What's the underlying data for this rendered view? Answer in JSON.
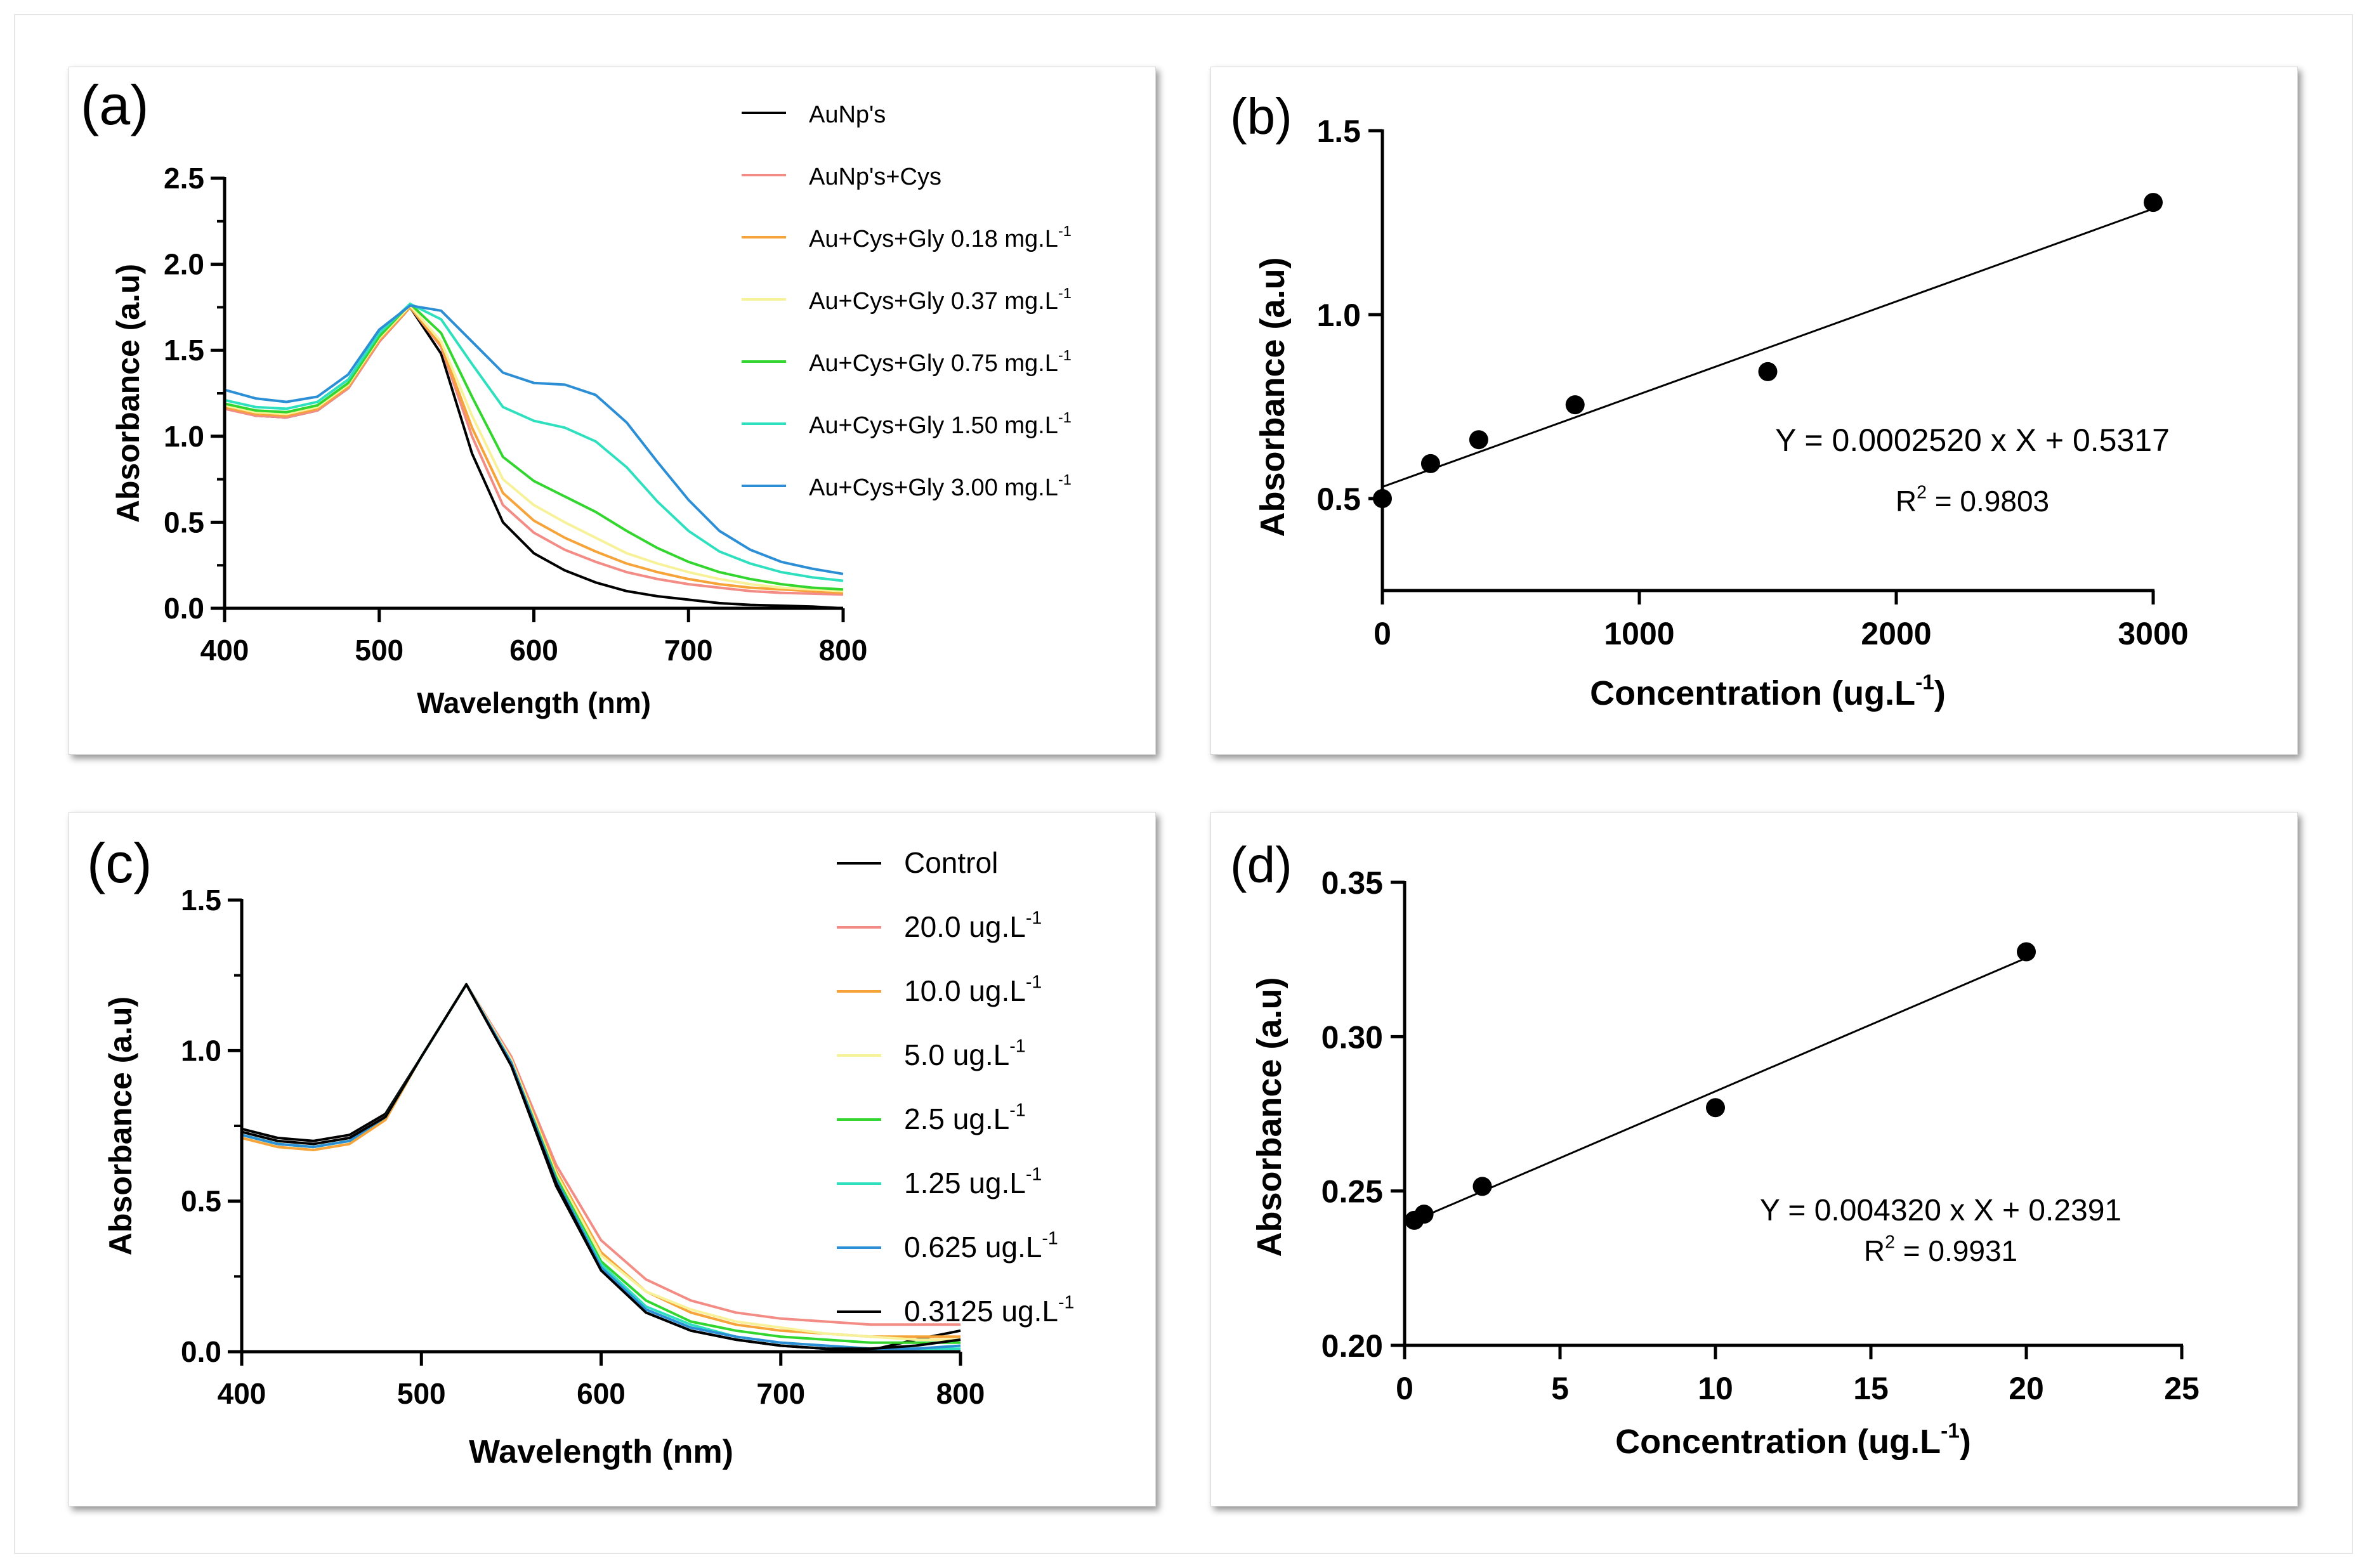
{
  "chart_data": [
    {
      "panel": "(a)",
      "type": "line",
      "xlabel": "Wavelength (nm)",
      "ylabel": "Absorbance (a.u)",
      "xlim": [
        400,
        800
      ],
      "ylim": [
        0,
        2.5
      ],
      "xticks": [
        "400",
        "500",
        "600",
        "700",
        "800"
      ],
      "yticks": [
        "0.0",
        "0.5",
        "1.0",
        "1.5",
        "2.0",
        "2.5"
      ],
      "legend": [
        {
          "base": "AuNp's",
          "sup": ""
        },
        {
          "base": "AuNp's+Cys",
          "sup": ""
        },
        {
          "base": "Au+Cys+Gly 0.18 mg.L",
          "sup": "-1"
        },
        {
          "base": "Au+Cys+Gly 0.37 mg.L",
          "sup": "-1"
        },
        {
          "base": "Au+Cys+Gly 0.75 mg.L",
          "sup": "-1"
        },
        {
          "base": "Au+Cys+Gly 1.50 mg.L",
          "sup": "-1"
        },
        {
          "base": "Au+Cys+Gly 3.00 mg.L",
          "sup": "-1"
        }
      ],
      "x": [
        400,
        420,
        440,
        460,
        480,
        500,
        520,
        540,
        560,
        580,
        600,
        620,
        640,
        660,
        680,
        700,
        720,
        740,
        760,
        780,
        800
      ],
      "series": [
        {
          "name": "AuNp's",
          "color": "#000000",
          "values": [
            1.17,
            1.12,
            1.11,
            1.15,
            1.28,
            1.55,
            1.75,
            1.48,
            0.9,
            0.5,
            0.32,
            0.22,
            0.15,
            0.1,
            0.07,
            0.05,
            0.03,
            0.02,
            0.015,
            0.01,
            0.0
          ]
        },
        {
          "name": "AuNp's+Cys",
          "color": "#f28c84",
          "values": [
            1.16,
            1.12,
            1.11,
            1.15,
            1.28,
            1.55,
            1.75,
            1.52,
            1.0,
            0.6,
            0.44,
            0.34,
            0.27,
            0.21,
            0.17,
            0.14,
            0.12,
            0.1,
            0.09,
            0.085,
            0.08
          ]
        },
        {
          "name": "Au+Cys+Gly 0.18 mg.L-1",
          "color": "#f6a33a",
          "values": [
            1.17,
            1.13,
            1.12,
            1.16,
            1.29,
            1.56,
            1.75,
            1.53,
            1.05,
            0.67,
            0.51,
            0.41,
            0.33,
            0.26,
            0.21,
            0.17,
            0.14,
            0.12,
            0.11,
            0.1,
            0.09
          ]
        },
        {
          "name": "Au+Cys+Gly 0.37 mg.L-1",
          "color": "#f7f29a",
          "values": [
            1.18,
            1.14,
            1.13,
            1.17,
            1.3,
            1.57,
            1.76,
            1.55,
            1.12,
            0.75,
            0.6,
            0.5,
            0.41,
            0.32,
            0.26,
            0.21,
            0.17,
            0.14,
            0.12,
            0.11,
            0.1
          ]
        },
        {
          "name": "Au+Cys+Gly 0.75 mg.L-1",
          "color": "#33d62e",
          "values": [
            1.19,
            1.15,
            1.14,
            1.18,
            1.31,
            1.58,
            1.77,
            1.6,
            1.23,
            0.88,
            0.74,
            0.65,
            0.56,
            0.45,
            0.35,
            0.27,
            0.21,
            0.17,
            0.14,
            0.12,
            0.11
          ]
        },
        {
          "name": "Au+Cys+Gly 1.50 mg.L-1",
          "color": "#2fe0bf",
          "values": [
            1.21,
            1.17,
            1.16,
            1.2,
            1.33,
            1.6,
            1.77,
            1.68,
            1.42,
            1.17,
            1.09,
            1.05,
            0.97,
            0.82,
            0.62,
            0.45,
            0.33,
            0.26,
            0.21,
            0.18,
            0.16
          ]
        },
        {
          "name": "Au+Cys+Gly 3.00 mg.L-1",
          "color": "#2c8fd6",
          "values": [
            1.27,
            1.22,
            1.2,
            1.23,
            1.36,
            1.62,
            1.76,
            1.73,
            1.55,
            1.37,
            1.31,
            1.3,
            1.24,
            1.08,
            0.85,
            0.63,
            0.45,
            0.34,
            0.27,
            0.23,
            0.2
          ]
        }
      ]
    },
    {
      "panel": "(b)",
      "type": "scatter",
      "xlabel_base": "Concentration (ug.L",
      "xlabel_sup": "-1",
      "xlabel_end": ")",
      "ylabel": "Absorbance (a.u)",
      "xlim": [
        0,
        3000
      ],
      "ylim": [
        0.25,
        1.5
      ],
      "xticks": [
        "0",
        "1000",
        "2000",
        "3000"
      ],
      "yticks": [
        "0.5",
        "1.0",
        "1.5"
      ],
      "points": [
        [
          0,
          0.5
        ],
        [
          187.5,
          0.595
        ],
        [
          375,
          0.66
        ],
        [
          750,
          0.755
        ],
        [
          1500,
          0.845
        ],
        [
          3000,
          1.305
        ]
      ],
      "fit": {
        "slope": 0.000252,
        "intercept": 0.5317
      },
      "equation": "Y = 0.0002520 x X + 0.5317",
      "r2_label": "R",
      "r2_sup": "2",
      "r2_value": " = 0.9803"
    },
    {
      "panel": "(c)",
      "type": "line",
      "xlabel": "Wavelength (nm)",
      "ylabel": "Absorbance (a.u)",
      "xlim": [
        400,
        800
      ],
      "ylim": [
        0,
        1.5
      ],
      "xticks": [
        "400",
        "500",
        "600",
        "700",
        "800"
      ],
      "yticks": [
        "0.0",
        "0.5",
        "1.0",
        "1.5"
      ],
      "legend": [
        {
          "base": "Control",
          "sup": ""
        },
        {
          "base": "20.0 ug.L",
          "sup": "-1"
        },
        {
          "base": "10.0 ug.L",
          "sup": "-1"
        },
        {
          "base": "5.0 ug.L",
          "sup": "-1"
        },
        {
          "base": "2.5 ug.L",
          "sup": "-1"
        },
        {
          "base": "1.25 ug.L",
          "sup": "-1"
        },
        {
          "base": "0.625 ug.L",
          "sup": "-1"
        },
        {
          "base": "0.3125 ug.L",
          "sup": "-1"
        }
      ],
      "x": [
        400,
        420,
        440,
        460,
        480,
        500,
        525,
        550,
        575,
        600,
        625,
        650,
        675,
        700,
        725,
        750,
        775,
        800
      ],
      "series": [
        {
          "name": "Control",
          "color": "#000000",
          "values": [
            0.74,
            0.71,
            0.7,
            0.72,
            0.79,
            0.98,
            1.22,
            0.95,
            0.55,
            0.27,
            0.13,
            0.07,
            0.04,
            0.02,
            0.01,
            0.005,
            0.04,
            0.07
          ]
        },
        {
          "name": "20.0 ug.L-1",
          "color": "#f28c84",
          "values": [
            0.72,
            0.69,
            0.68,
            0.7,
            0.78,
            0.98,
            1.22,
            0.98,
            0.62,
            0.37,
            0.24,
            0.17,
            0.13,
            0.11,
            0.1,
            0.09,
            0.09,
            0.09
          ]
        },
        {
          "name": "10.0 ug.L-1",
          "color": "#f6a33a",
          "values": [
            0.71,
            0.68,
            0.67,
            0.69,
            0.77,
            0.98,
            1.22,
            0.97,
            0.6,
            0.33,
            0.2,
            0.13,
            0.09,
            0.07,
            0.06,
            0.05,
            0.05,
            0.05
          ]
        },
        {
          "name": "5.0 ug.L-1",
          "color": "#f7f29a",
          "values": [
            0.72,
            0.69,
            0.68,
            0.7,
            0.78,
            0.98,
            1.22,
            0.97,
            0.59,
            0.32,
            0.2,
            0.14,
            0.1,
            0.08,
            0.06,
            0.05,
            0.04,
            0.04
          ]
        },
        {
          "name": "2.5 ug.L-1",
          "color": "#33d62e",
          "values": [
            0.72,
            0.69,
            0.68,
            0.7,
            0.78,
            0.98,
            1.22,
            0.96,
            0.58,
            0.3,
            0.17,
            0.1,
            0.07,
            0.05,
            0.04,
            0.03,
            0.03,
            0.03
          ]
        },
        {
          "name": "1.25 ug.L-1",
          "color": "#2fe0bf",
          "values": [
            0.72,
            0.69,
            0.68,
            0.7,
            0.78,
            0.98,
            1.22,
            0.96,
            0.57,
            0.29,
            0.15,
            0.09,
            0.05,
            0.03,
            0.02,
            0.01,
            0.01,
            0.01
          ]
        },
        {
          "name": "0.625 ug.L-1",
          "color": "#2c8fd6",
          "values": [
            0.72,
            0.69,
            0.68,
            0.7,
            0.78,
            0.98,
            1.22,
            0.96,
            0.57,
            0.28,
            0.14,
            0.08,
            0.05,
            0.03,
            0.02,
            0.01,
            0.01,
            0.02
          ]
        },
        {
          "name": "0.3125 ug.L-1",
          "color": "#000000",
          "values": [
            0.73,
            0.7,
            0.69,
            0.71,
            0.78,
            0.98,
            1.22,
            0.95,
            0.56,
            0.27,
            0.13,
            0.07,
            0.04,
            0.02,
            0.01,
            0.01,
            0.02,
            0.04
          ]
        }
      ]
    },
    {
      "panel": "(d)",
      "type": "scatter",
      "xlabel_base": "Concentration (ug.L",
      "xlabel_sup": "-1",
      "xlabel_end": ")",
      "ylabel": "Absorbance (a.u)",
      "xlim": [
        0,
        25
      ],
      "ylim": [
        0.2,
        0.35
      ],
      "xticks": [
        "0",
        "5",
        "10",
        "15",
        "20",
        "25"
      ],
      "yticks": [
        "0.20",
        "0.25",
        "0.30",
        "0.35"
      ],
      "points": [
        [
          0.3125,
          0.2405
        ],
        [
          0.625,
          0.2425
        ],
        [
          2.5,
          0.2515
        ],
        [
          10,
          0.277
        ],
        [
          20,
          0.3275
        ]
      ],
      "fit": {
        "slope": 0.00432,
        "intercept": 0.2391
      },
      "equation": "Y = 0.004320 x X + 0.2391",
      "r2_label": "R",
      "r2_sup": "2",
      "r2_value": " = 0.9931"
    }
  ]
}
